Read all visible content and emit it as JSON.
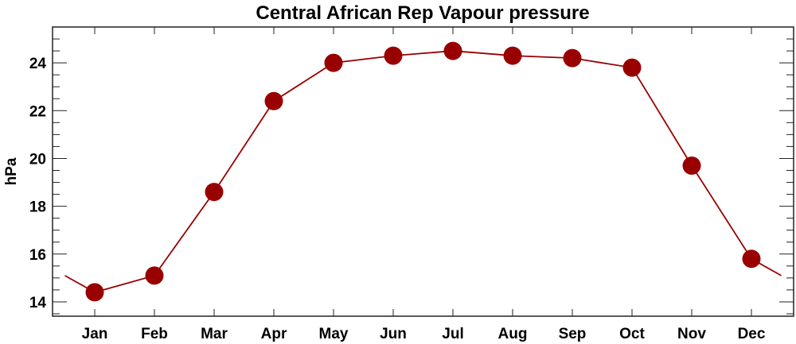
{
  "chart_data": {
    "type": "line",
    "title": "Central African Rep Vapour pressure",
    "xlabel": "",
    "ylabel": "hPa",
    "categories": [
      "Jan",
      "Feb",
      "Mar",
      "Apr",
      "May",
      "Jun",
      "Jul",
      "Aug",
      "Sep",
      "Oct",
      "Nov",
      "Dec"
    ],
    "series": [
      {
        "name": "Vapour pressure",
        "values": [
          14.4,
          15.1,
          18.6,
          22.4,
          24.0,
          24.3,
          24.5,
          24.3,
          24.2,
          23.8,
          19.7,
          15.8
        ],
        "color": "#990000"
      }
    ],
    "yticks": [
      "14",
      "16",
      "18",
      "20",
      "22",
      "24"
    ],
    "ylim": [
      13.4,
      25.5
    ],
    "grid": false
  }
}
